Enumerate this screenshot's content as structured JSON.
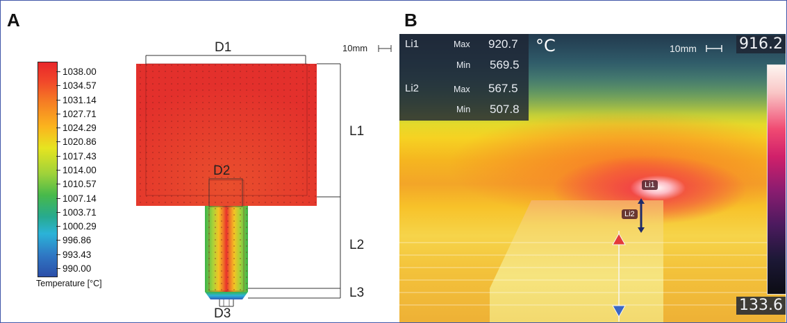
{
  "panel_a": {
    "letter": "A",
    "colorbar": {
      "labels": [
        "1038.00",
        "1034.57",
        "1031.14",
        "1027.71",
        "1024.29",
        "1020.86",
        "1017.43",
        "1014.00",
        "1010.57",
        "1007.14",
        "1003.71",
        "1000.29",
        "996.86",
        "993.43",
        "990.00"
      ],
      "title": "Temperature [°C]"
    },
    "dimensions": {
      "d1": "D1",
      "d2": "D2",
      "d3": "D3",
      "l1": "L1",
      "l2": "L2",
      "l3": "L3"
    },
    "scale_label": "10mm"
  },
  "panel_b": {
    "letter": "B",
    "li1_label": "Li1",
    "li2_label": "Li2",
    "max_label": "Max",
    "min_label": "Min",
    "li1_max": "920.7",
    "li1_min": "569.5",
    "li2_max": "567.5",
    "li2_min": "507.8",
    "unit": "°C",
    "scale_label": "10mm",
    "top_readout": "916.2",
    "bottom_readout": "133.6",
    "marker_li1": "Li1",
    "marker_li2": "Li2"
  },
  "colors": {
    "frame": "#3f55a8",
    "sim_red": "#e8312c",
    "sim_green": "#4cba4a",
    "sim_blue": "#2f5db8"
  }
}
